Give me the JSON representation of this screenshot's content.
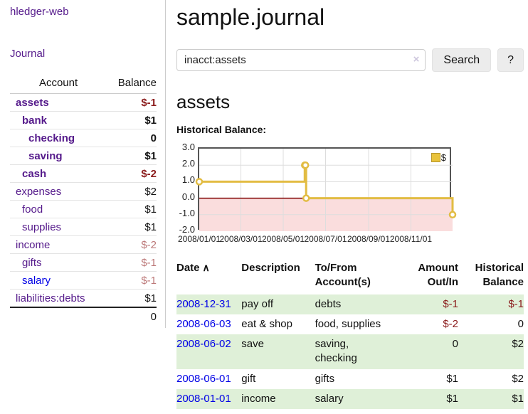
{
  "app": {
    "brand": "hledger-web"
  },
  "sidebar": {
    "nav": {
      "journal_label": "Journal"
    },
    "accounts_table": {
      "headers": {
        "account": "Account",
        "balance": "Balance"
      },
      "rows": [
        {
          "name": "assets",
          "level": 1,
          "bold": true,
          "balance": "$-1",
          "balance_style": "neg",
          "link_style": "purple"
        },
        {
          "name": "bank",
          "level": 2,
          "bold": true,
          "balance": "$1",
          "balance_style": "pos",
          "link_style": "purple"
        },
        {
          "name": "checking",
          "level": 3,
          "bold": true,
          "balance": "0",
          "balance_style": "pos",
          "link_style": "purple"
        },
        {
          "name": "saving",
          "level": 3,
          "bold": true,
          "balance": "$1",
          "balance_style": "pos",
          "link_style": "purple"
        },
        {
          "name": "cash",
          "level": 2,
          "bold": true,
          "balance": "$-2",
          "balance_style": "neg",
          "link_style": "purple"
        },
        {
          "name": "expenses",
          "level": 1,
          "bold": false,
          "balance": "$2",
          "balance_style": "pos",
          "link_style": "purple"
        },
        {
          "name": "food",
          "level": 2,
          "bold": false,
          "balance": "$1",
          "balance_style": "pos",
          "link_style": "purple"
        },
        {
          "name": "supplies",
          "level": 2,
          "bold": false,
          "balance": "$1",
          "balance_style": "pos",
          "link_style": "purple"
        },
        {
          "name": "income",
          "level": 1,
          "bold": false,
          "balance": "$-2",
          "balance_style": "fade",
          "link_style": "purple"
        },
        {
          "name": "gifts",
          "level": 2,
          "bold": false,
          "balance": "$-1",
          "balance_style": "fade",
          "link_style": "purple"
        },
        {
          "name": "salary",
          "level": 2,
          "bold": false,
          "balance": "$-1",
          "balance_style": "fade",
          "link_style": "blue"
        },
        {
          "name": "liabilities:debts",
          "level": 1,
          "bold": false,
          "balance": "$1",
          "balance_style": "pos",
          "link_style": "purple"
        }
      ],
      "total": "0"
    }
  },
  "main": {
    "title": "sample.journal",
    "search": {
      "value": "inacct:assets",
      "clear_icon": "×",
      "search_label": "Search",
      "help_label": "?"
    },
    "account_heading": "assets",
    "chart_label": "Historical Balance:"
  },
  "chart_data": {
    "type": "line",
    "title": "Historical Balance:",
    "step": true,
    "series": [
      {
        "name": "$",
        "color": "#e2bc43",
        "points": [
          [
            "2008-01-01",
            1
          ],
          [
            "2008-06-01",
            2
          ],
          [
            "2008-06-02",
            2
          ],
          [
            "2008-06-03",
            0
          ],
          [
            "2008-12-31",
            -1
          ]
        ]
      }
    ],
    "x_range": [
      "2008-01-01",
      "2008-12-31"
    ],
    "ylim": [
      -2,
      3
    ],
    "y_ticks": [
      "3.0",
      "2.0",
      "1.0",
      "0.0",
      "-1.0",
      "-2.0"
    ],
    "x_ticks": [
      "2008/01/01",
      "2008/03/01",
      "2008/05/01",
      "2008/07/01",
      "2008/09/01",
      "2008/11/01"
    ],
    "grid": true,
    "negative_region_color": "#fadddd",
    "zero_line_color": "#7e0000",
    "legend": {
      "label": "$",
      "position": "top-right"
    }
  },
  "register": {
    "headers": [
      "Date",
      "Description",
      "To/From\nAccount(s)",
      "Amount\nOut/In",
      "Historical\nBalance"
    ],
    "sort_icon": "∧",
    "rows": [
      {
        "date": "2008-12-31",
        "description": "pay off",
        "accounts": "debts",
        "amount": "$-1",
        "amount_style": "neg",
        "balance": "$-1",
        "balance_style": "neg"
      },
      {
        "date": "2008-06-03",
        "description": "eat & shop",
        "accounts": "food, supplies",
        "amount": "$-2",
        "amount_style": "neg",
        "balance": "0",
        "balance_style": "pos"
      },
      {
        "date": "2008-06-02",
        "description": "save",
        "accounts": "saving,\nchecking",
        "amount": "0",
        "amount_style": "pos",
        "balance": "$2",
        "balance_style": "pos"
      },
      {
        "date": "2008-06-01",
        "description": "gift",
        "accounts": "gifts",
        "amount": "$1",
        "amount_style": "pos",
        "balance": "$2",
        "balance_style": "pos"
      },
      {
        "date": "2008-01-01",
        "description": "income",
        "accounts": "salary",
        "amount": "$1",
        "amount_style": "pos",
        "balance": "$1",
        "balance_style": "pos"
      }
    ]
  },
  "colors": {
    "link_purple": "#551a8b",
    "link_blue": "#0000e6",
    "negative_red": "#8b1c1c",
    "faded_red": "#bc7878",
    "row_stripe_green": "#dff0d8",
    "chart_line_gold": "#e2bc43",
    "chart_negative_pink": "#fadddd",
    "chart_zero_line": "#7e0000"
  }
}
